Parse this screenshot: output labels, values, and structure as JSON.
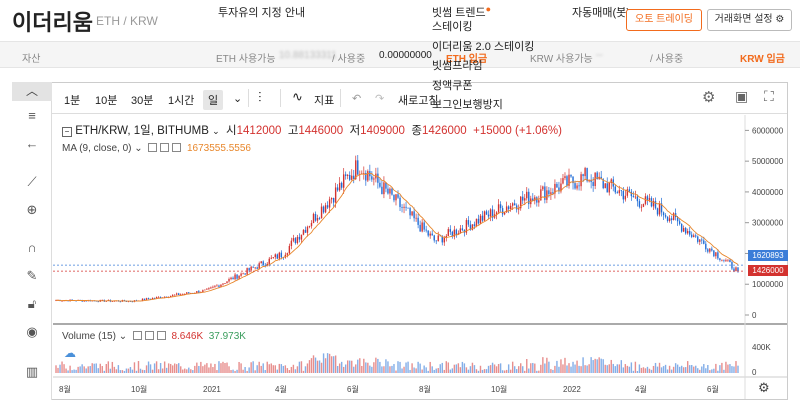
{
  "header": {
    "coin_name": "이더리움",
    "pair": "ETH / KRW",
    "menu_notice": "투자유의 지정 안내",
    "menu_bithumb_trends": "빗썸 트렌드",
    "menu_auto_trading": "자동매매(봇)",
    "btn_auto_trading": "오토 트레이딩",
    "btn_screen_settings": "거래화면 설정"
  },
  "dropdown": {
    "items": [
      "스테이킹",
      "이더리움 2.0 스테이킹",
      "빗썸프라임",
      "정액쿠폰",
      "보그인보행방지"
    ]
  },
  "asset_bar": {
    "label": "자산",
    "eth_available_label": "ETH 사용가능",
    "eth_available_value": "10.88133311",
    "eth_in_use_label": "/ 사용중",
    "eth_in_use_value": "0.00000000",
    "eth_deposit": "ETH 입금",
    "krw_available_label": "KRW 사용가능",
    "krw_available_value": "--",
    "krw_in_use_label": "/ 사용중",
    "krw_deposit": "KRW 입금"
  },
  "toolbar": {
    "tf_1m": "1분",
    "tf_10m": "10분",
    "tf_30m": "30분",
    "tf_1h": "1시간",
    "tf_day": "일",
    "indicator_label": "지표",
    "refresh_label": "새로고침"
  },
  "legend": {
    "symbol": "ETH/KRW, 1일, BITHUMB",
    "open_label": "시",
    "open_value": "1412000",
    "high_label": "고",
    "high_value": "1446000",
    "low_label": "저",
    "low_value": "1409000",
    "close_label": "종",
    "close_value": "1426000",
    "change": "+15000 (+1.06%)",
    "ma_label": "MA (9, close, 0)",
    "ma_value": "1673555.5556",
    "volume_label": "Volume (15)",
    "volume_value1": "8.646K",
    "volume_value2": "37.973K"
  },
  "price_tags": {
    "ma_tag": "1620893",
    "last_tag": "1426000"
  },
  "chart_data": {
    "type": "candlestick",
    "series": [
      {
        "name": "ETH/KRW",
        "x": [
          "8월",
          "10월",
          "2021",
          "4월",
          "6월",
          "8월",
          "10월",
          "2022",
          "4월",
          "6월"
        ],
        "y": [
          480000,
          450000,
          800000,
          2000000,
          4900000,
          2400000,
          3600000,
          4500000,
          3400000,
          1426000
        ]
      }
    ],
    "y_ticks": [
      "6000000",
      "5000000",
      "4000000",
      "3000000",
      "2000000",
      "1000000",
      "0"
    ],
    "volume_ticks": [
      "400K",
      "0"
    ],
    "x_ticks": [
      "8월",
      "10월",
      "2021",
      "4월",
      "6월",
      "8월",
      "10월",
      "2022",
      "4월",
      "6월"
    ],
    "ylim": [
      0,
      6500000
    ],
    "colors": {
      "up": "#d3322f",
      "down": "#1e6bd6",
      "ma": "#e8872c"
    }
  }
}
